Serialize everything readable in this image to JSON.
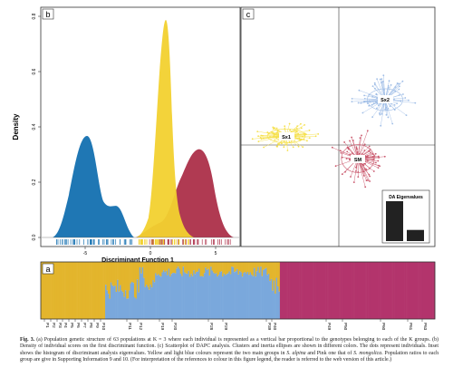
{
  "panel_b": {
    "label": "b",
    "ylabel": "Density",
    "xlabel": "Discriminant Function 1",
    "yticks": [
      "0.0",
      "0.2",
      "0.4",
      "0.6",
      "0.8"
    ],
    "xticks": [
      "-5",
      "0",
      "5"
    ],
    "colors": {
      "blue": "#1f77b4",
      "yellow": "#f2d12f",
      "red": "#b03a52"
    }
  },
  "panel_c": {
    "label": "c",
    "clusters": [
      {
        "label": "Sx1",
        "color": "#f5e04a"
      },
      {
        "label": "Sx2",
        "color": "#9fbde6"
      },
      {
        "label": "SM",
        "color": "#c9566b"
      }
    ],
    "inset_title": "DA Eigenvalues",
    "inset_values": [
      1.0,
      0.28
    ]
  },
  "panel_a": {
    "label": "a",
    "colors": {
      "yellow": "#e3b52c",
      "blue": "#7aa8dc",
      "pink": "#b3346c"
    },
    "populations": [
      "P1",
      "P2",
      "P3",
      "P4",
      "P5",
      "P6",
      "P7",
      "P8",
      "P9",
      "P10",
      "P11",
      "P12",
      "P19",
      "P20",
      "P28",
      "P29",
      "P39",
      "P40",
      "P49",
      "P50",
      "P60",
      "P61",
      "P63"
    ]
  },
  "caption": {
    "fig": "Fig. 3.",
    "text": " (a) Population genetic structure of 63 populations at K = 3 where each individual is represented as a vertical bar proportional to the genotypes belonging to each of the K groups. (b) Density of individual scores on the first discriminant function. (c) Scatterplot of DAPC analysis. Clusters and inertia ellipses are shown in different colors. The dots represent individuals. Inset shows the histogram of discriminant analysis eigenvalues. Yellow and light blue colours represent the two main groups in ",
    "italic1": "S. alpina",
    "mid": " and Pink one that of ",
    "italic2": "S. mongolica",
    "tail": ". Population ratios to each group are give in Supporting Information 9 and 10. (For interpretation of the references to colour in this figure legend, the reader is referred to the web version of this article.)"
  }
}
